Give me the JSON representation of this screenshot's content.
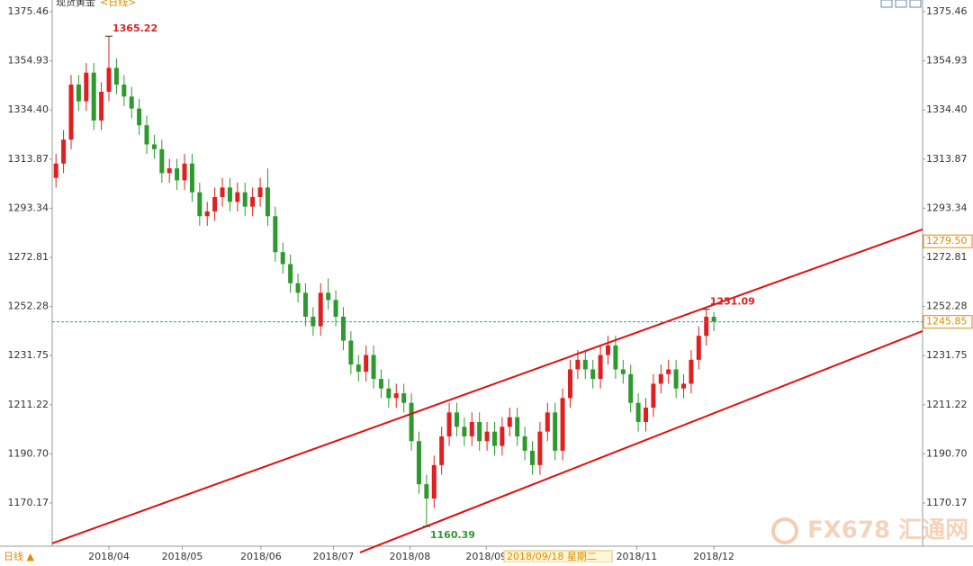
{
  "chart_data": {
    "type": "candlestick",
    "title": "现货黄金",
    "period": "<日线>",
    "period_footer": "日线 ▲",
    "crosshair_label": "2018/09/18 星期二",
    "watermark": "FX678 汇通网",
    "up_color": "#e02020",
    "down_color": "#2e9a2e",
    "ylim": [
      1152.1,
      1380.35
    ],
    "xlim": [
      -0.5,
      114.6
    ],
    "yticks": [
      1375.46,
      1354.93,
      {
        "value": 1334.4,
        "label": "1334.40"
      },
      1313.87,
      1293.34,
      1272.81,
      1252.28,
      1231.75,
      1211.22,
      {
        "value": 1190.7,
        "label": "1190.70"
      },
      1170.17
    ],
    "xticks": [
      {
        "value": 7,
        "label": "2018/04"
      },
      {
        "value": 16.7,
        "label": "2018/05"
      },
      {
        "value": 27.1,
        "label": "2018/06"
      },
      {
        "value": 36.7,
        "label": "2018/07"
      },
      {
        "value": 46.8,
        "label": "2018/08"
      },
      {
        "value": 56.9,
        "label": "2018/09"
      },
      {
        "value": 76.8,
        "label": "2018/11"
      },
      {
        "value": 87,
        "label": "2018/12"
      }
    ],
    "series": {
      "open": [
        1306,
        1312,
        1322,
        1345,
        1338,
        1350,
        1330,
        1342,
        1352,
        1345,
        1340,
        1335,
        1328,
        1320,
        1318,
        1308,
        1310,
        1305,
        1312,
        1300,
        1290,
        1292,
        1298,
        1302,
        1296,
        1300,
        1294,
        1298,
        1302,
        1290,
        1275,
        1270,
        1262,
        1258,
        1248,
        1244,
        1258,
        1255,
        1248,
        1238,
        1228,
        1225,
        1232,
        1222,
        1218,
        1214,
        1216,
        1212,
        1196,
        1178,
        1172,
        1186,
        1198,
        1208,
        1202,
        1198,
        1204,
        1196,
        1200,
        1194,
        1202,
        1206,
        1198,
        1192,
        1186,
        1200,
        1208,
        1192,
        1214,
        1226,
        1230,
        1226,
        1222,
        1232,
        1236,
        1226,
        1224,
        1212,
        1204,
        1210,
        1220,
        1224,
        1226,
        1218,
        1220,
        1230,
        1240,
        1248
      ],
      "high": [
        1316,
        1326,
        1349,
        1349,
        1354,
        1354,
        1346,
        1365.22,
        1356,
        1349,
        1344,
        1339,
        1332,
        1324,
        1322,
        1314,
        1314,
        1316,
        1316,
        1304,
        1296,
        1302,
        1306,
        1306,
        1304,
        1304,
        1302,
        1306,
        1310,
        1294,
        1279,
        1274,
        1266,
        1262,
        1252,
        1262,
        1264,
        1259,
        1252,
        1242,
        1232,
        1236,
        1236,
        1226,
        1222,
        1220,
        1220,
        1216,
        1200,
        1182,
        1190,
        1202,
        1212,
        1212,
        1206,
        1208,
        1208,
        1204,
        1204,
        1206,
        1210,
        1210,
        1202,
        1196,
        1204,
        1212,
        1212,
        1218,
        1230,
        1234,
        1234,
        1230,
        1236,
        1240,
        1240,
        1230,
        1228,
        1216,
        1214,
        1224,
        1228,
        1230,
        1230,
        1224,
        1234,
        1244,
        1251.09,
        1250
      ],
      "low": [
        1302,
        1308,
        1318,
        1334,
        1334,
        1326,
        1326,
        1338,
        1341,
        1336,
        1331,
        1324,
        1316,
        1314,
        1304,
        1304,
        1301,
        1301,
        1296,
        1286,
        1286,
        1288,
        1294,
        1292,
        1292,
        1290,
        1290,
        1294,
        1286,
        1271,
        1266,
        1258,
        1254,
        1244,
        1240,
        1240,
        1251,
        1244,
        1234,
        1224,
        1221,
        1221,
        1218,
        1214,
        1210,
        1210,
        1208,
        1192,
        1174,
        1160.39,
        1168,
        1182,
        1194,
        1198,
        1194,
        1194,
        1192,
        1192,
        1190,
        1190,
        1198,
        1194,
        1188,
        1182,
        1182,
        1196,
        1188,
        1188,
        1210,
        1222,
        1222,
        1218,
        1218,
        1228,
        1222,
        1220,
        1208,
        1200,
        1200,
        1206,
        1216,
        1220,
        1214,
        1214,
        1216,
        1226,
        1236,
        1242
      ],
      "close": [
        1312,
        1322,
        1345,
        1338,
        1350,
        1330,
        1342,
        1352,
        1345,
        1340,
        1335,
        1328,
        1320,
        1318,
        1308,
        1310,
        1305,
        1312,
        1300,
        1290,
        1292,
        1298,
        1302,
        1296,
        1300,
        1294,
        1298,
        1302,
        1290,
        1275,
        1270,
        1262,
        1258,
        1248,
        1244,
        1258,
        1255,
        1248,
        1238,
        1228,
        1225,
        1232,
        1222,
        1218,
        1214,
        1216,
        1212,
        1196,
        1178,
        1172,
        1186,
        1198,
        1208,
        1202,
        1198,
        1204,
        1196,
        1200,
        1194,
        1202,
        1206,
        1198,
        1192,
        1186,
        1200,
        1208,
        1192,
        1214,
        1226,
        1230,
        1226,
        1222,
        1232,
        1236,
        1226,
        1224,
        1212,
        1204,
        1210,
        1220,
        1224,
        1226,
        1218,
        1220,
        1230,
        1240,
        1248,
        1245.85
      ]
    },
    "trendlines": [
      {
        "color": "#e01010",
        "x": [
          -0.5,
          114.6
        ],
        "y": [
          1153.3,
          1284.5
        ]
      },
      {
        "color": "#e01010",
        "x": [
          40.2,
          114.6
        ],
        "y": [
          1149.5,
          1242
        ]
      }
    ],
    "channel_price": {
      "value": 1279.5,
      "label": "1279.50"
    },
    "last_line_color": "#2aa0a0"
  }
}
